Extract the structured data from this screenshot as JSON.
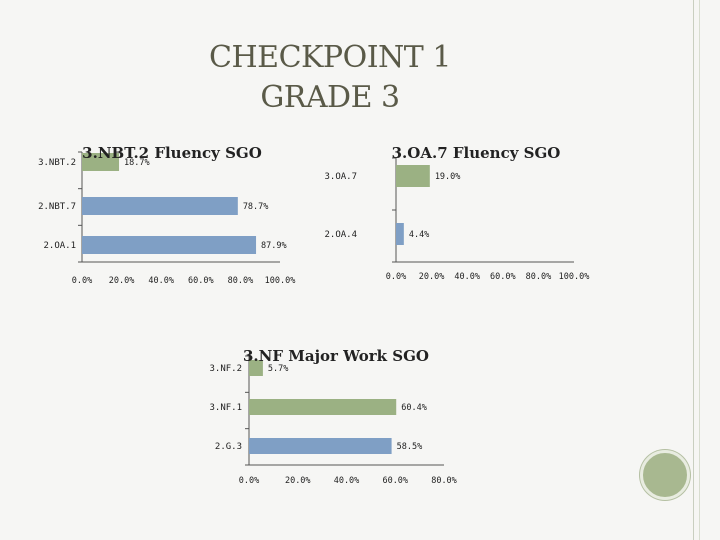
{
  "slide": {
    "title_line1": "CHECKPOINT 1",
    "title_line2": "GRADE 3"
  },
  "chart_data": [
    {
      "type": "bar",
      "orientation": "horizontal",
      "title": "3.NBT.2 Fluency SGO",
      "categories": [
        "3.NBT.2",
        "2.NBT.7",
        "2.OA.1"
      ],
      "values": [
        18.7,
        78.7,
        87.9
      ],
      "value_labels": [
        "18.7%",
        "78.7%",
        "87.9%"
      ],
      "bar_colors": [
        "#9bb183",
        "#7f9fc5",
        "#7f9fc5"
      ],
      "xlim": [
        0,
        100
      ],
      "xticks": [
        "0.0%",
        "20.0%",
        "40.0%",
        "60.0%",
        "80.0%",
        "100.0%"
      ],
      "grid": false
    },
    {
      "type": "bar",
      "orientation": "horizontal",
      "title": "3.OA.7 Fluency SGO",
      "categories": [
        "3.OA.7",
        "2.OA.4"
      ],
      "values": [
        19.0,
        4.4
      ],
      "value_labels": [
        "19.0%",
        "4.4%"
      ],
      "bar_colors": [
        "#9bb183",
        "#7f9fc5"
      ],
      "xlim": [
        0,
        100
      ],
      "xticks": [
        "0.0%",
        "20.0%",
        "40.0%",
        "60.0%",
        "80.0%",
        "100.0%"
      ],
      "grid": false
    },
    {
      "type": "bar",
      "orientation": "horizontal",
      "title": "3.NF Major Work SGO",
      "categories": [
        "3.NF.2",
        "3.NF.1",
        "2.G.3"
      ],
      "values": [
        5.7,
        60.4,
        58.5
      ],
      "value_labels": [
        "5.7%",
        "60.4%",
        "58.5%"
      ],
      "bar_colors": [
        "#9bb183",
        "#9bb183",
        "#7f9fc5"
      ],
      "xlim": [
        0,
        80
      ],
      "xticks": [
        "0.0%",
        "20.0%",
        "40.0%",
        "60.0%",
        "80.0%"
      ],
      "grid": false
    }
  ]
}
